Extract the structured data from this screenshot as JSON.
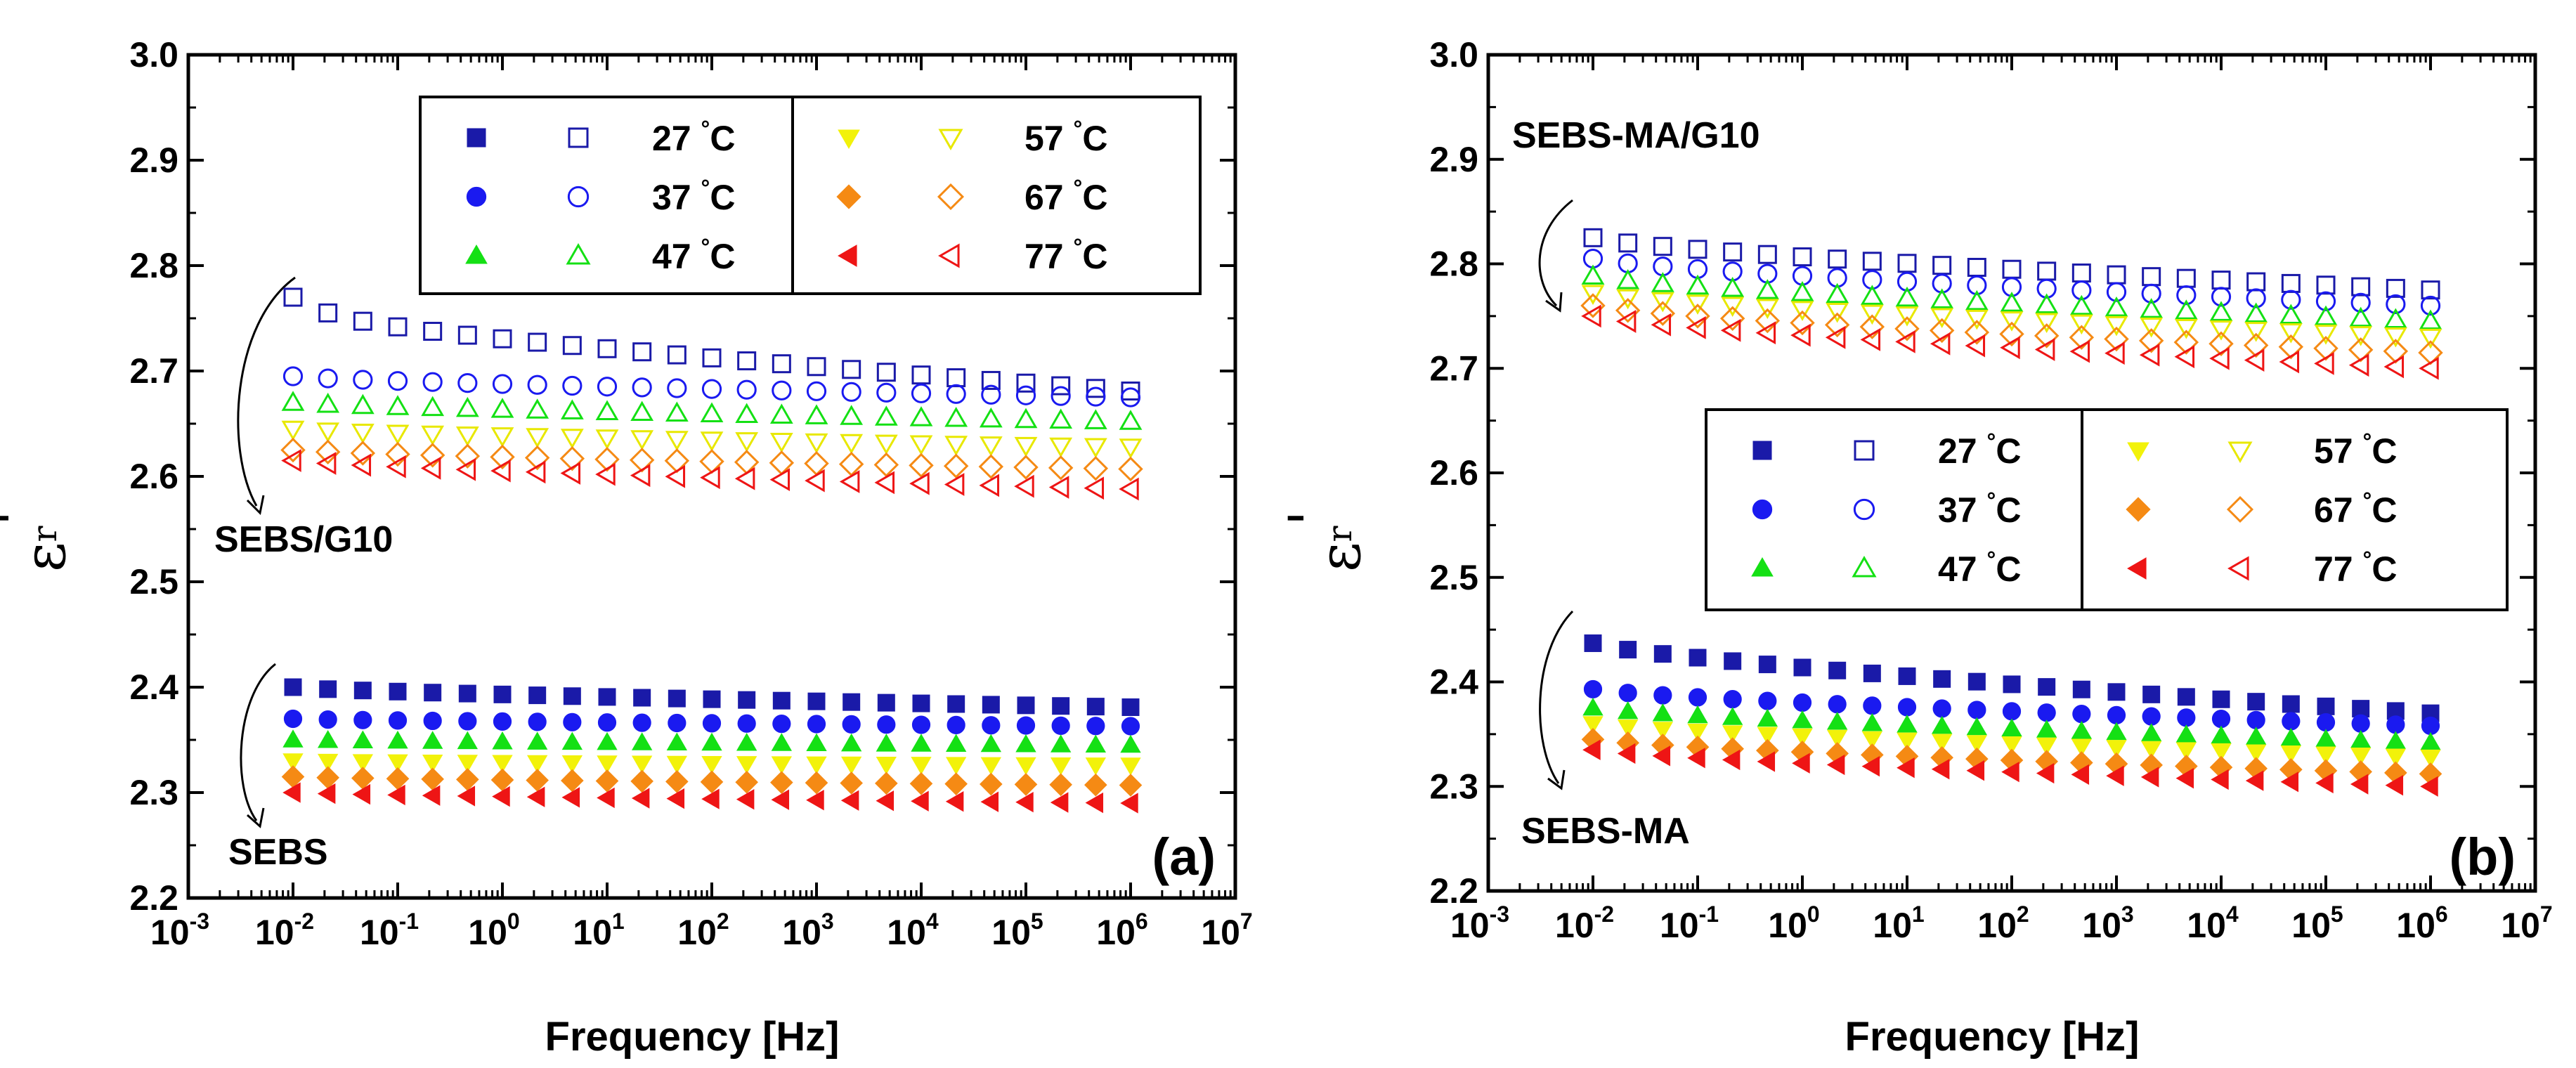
{
  "chart_data": [
    {
      "type": "scatter",
      "panel_label": "(a)",
      "xlabel": "Frequency [Hz]",
      "ylabel": "ε",
      "ylabel_sub": "r",
      "ylabel_prime": "'",
      "xscale": "log",
      "xlim_exp": [
        -3,
        7
      ],
      "xtick_exps": [
        "-3",
        "-2",
        "-1",
        "0",
        "1",
        "2",
        "3",
        "4",
        "5",
        "6",
        "7"
      ],
      "xtick_base": "10",
      "ylim": [
        2.2,
        3.0
      ],
      "yticks": [
        "2.2",
        "2.3",
        "2.4",
        "2.5",
        "2.6",
        "2.7",
        "2.8",
        "2.9",
        "3.0"
      ],
      "x_exp_range": [
        -2,
        6
      ],
      "points_per_series": 25,
      "annotations": [
        {
          "text": "SEBS/G10",
          "group": "composite"
        },
        {
          "text": "SEBS",
          "group": "neat"
        }
      ],
      "legend": [
        {
          "temp": "27",
          "unit": "°C",
          "color": "#1a1aa8"
        },
        {
          "temp": "37",
          "unit": "°C",
          "color": "#1a1af0"
        },
        {
          "temp": "47",
          "unit": "°C",
          "color": "#14e014"
        },
        {
          "temp": "57",
          "unit": "°C",
          "color": "#f2f20a"
        },
        {
          "temp": "67",
          "unit": "°C",
          "color": "#f58a14"
        },
        {
          "temp": "77",
          "unit": "°C",
          "color": "#ee1515"
        }
      ],
      "series": [
        {
          "name": "SEBS/G10 27 °C",
          "group": "composite",
          "marker": "square",
          "filled": false,
          "color": "#1a1aa8",
          "start": 2.77,
          "end": 2.695,
          "decay": 0.3,
          "initial_drop": 0.035
        },
        {
          "name": "SEBS/G10 37 °C",
          "group": "composite",
          "marker": "circle",
          "filled": false,
          "color": "#1a1af0",
          "start": 2.695,
          "end": 2.675,
          "decay": 0.1,
          "initial_drop": 0.0
        },
        {
          "name": "SEBS/G10 47 °C",
          "group": "composite",
          "marker": "triangle-up",
          "filled": false,
          "color": "#14e014",
          "start": 2.67,
          "end": 2.652,
          "decay": 0.1,
          "initial_drop": 0.0
        },
        {
          "name": "SEBS/G10 57 °C",
          "group": "composite",
          "marker": "triangle-down",
          "filled": false,
          "color": "#e8e800",
          "start": 2.645,
          "end": 2.628,
          "decay": 0.1,
          "initial_drop": 0.0
        },
        {
          "name": "SEBS/G10 67 °C",
          "group": "composite",
          "marker": "diamond",
          "filled": false,
          "color": "#f58a14",
          "start": 2.625,
          "end": 2.607,
          "decay": 0.1,
          "initial_drop": 0.0
        },
        {
          "name": "SEBS/G10 77 °C",
          "group": "composite",
          "marker": "triangle-left",
          "filled": false,
          "color": "#ee1515",
          "start": 2.615,
          "end": 2.588,
          "decay": 0.15,
          "initial_drop": 0.0
        },
        {
          "name": "SEBS 27 °C",
          "group": "neat",
          "marker": "square",
          "filled": true,
          "color": "#1a1aa8",
          "start": 2.4,
          "end": 2.381,
          "decay": 0.12,
          "initial_drop": 0.0
        },
        {
          "name": "SEBS 37 °C",
          "group": "neat",
          "marker": "circle",
          "filled": true,
          "color": "#1a1af0",
          "start": 2.37,
          "end": 2.363,
          "decay": 0.05,
          "initial_drop": 0.0
        },
        {
          "name": "SEBS 47 °C",
          "group": "neat",
          "marker": "triangle-up",
          "filled": true,
          "color": "#14e014",
          "start": 2.35,
          "end": 2.345,
          "decay": 0.05,
          "initial_drop": 0.0
        },
        {
          "name": "SEBS 57 °C",
          "group": "neat",
          "marker": "triangle-down",
          "filled": true,
          "color": "#f2f20a",
          "start": 2.33,
          "end": 2.326,
          "decay": 0.05,
          "initial_drop": 0.0
        },
        {
          "name": "SEBS 67 °C",
          "group": "neat",
          "marker": "diamond",
          "filled": true,
          "color": "#f58a14",
          "start": 2.315,
          "end": 2.307,
          "decay": 0.05,
          "initial_drop": 0.0
        },
        {
          "name": "SEBS 77 °C",
          "group": "neat",
          "marker": "triangle-left",
          "filled": true,
          "color": "#ee1515",
          "start": 2.3,
          "end": 2.29,
          "decay": 0.05,
          "initial_drop": 0.0
        }
      ]
    },
    {
      "type": "scatter",
      "panel_label": "(b)",
      "xlabel": "Frequency [Hz]",
      "ylabel": "ε",
      "ylabel_sub": "r",
      "ylabel_prime": "'",
      "xscale": "log",
      "xlim_exp": [
        -3,
        7
      ],
      "xtick_exps": [
        "-3",
        "-2",
        "-1",
        "0",
        "1",
        "2",
        "3",
        "4",
        "5",
        "6",
        "7"
      ],
      "xtick_base": "10",
      "ylim": [
        2.2,
        3.0
      ],
      "yticks": [
        "2.2",
        "2.3",
        "2.4",
        "2.5",
        "2.6",
        "2.7",
        "2.8",
        "2.9",
        "3.0"
      ],
      "x_exp_range": [
        -2,
        6
      ],
      "points_per_series": 25,
      "annotations": [
        {
          "text": "SEBS-MA/G10",
          "group": "composite"
        },
        {
          "text": "SEBS-MA",
          "group": "neat"
        }
      ],
      "legend": [
        {
          "temp": "27",
          "unit": "°C",
          "color": "#1a1aa8"
        },
        {
          "temp": "37",
          "unit": "°C",
          "color": "#1a1af0"
        },
        {
          "temp": "47",
          "unit": "°C",
          "color": "#14e014"
        },
        {
          "temp": "57",
          "unit": "°C",
          "color": "#f2f20a"
        },
        {
          "temp": "67",
          "unit": "°C",
          "color": "#f58a14"
        },
        {
          "temp": "77",
          "unit": "°C",
          "color": "#ee1515"
        }
      ],
      "series": [
        {
          "name": "SEBS-MA/G10 27 °C",
          "group": "composite",
          "marker": "square",
          "filled": false,
          "color": "#1a1aa8",
          "start": 2.825,
          "end": 2.775,
          "decay": 0.1,
          "initial_drop": 0.0
        },
        {
          "name": "SEBS-MA/G10 37 °C",
          "group": "composite",
          "marker": "circle",
          "filled": false,
          "color": "#1a1af0",
          "start": 2.805,
          "end": 2.76,
          "decay": 0.1,
          "initial_drop": 0.0
        },
        {
          "name": "SEBS-MA/G10 47 °C",
          "group": "composite",
          "marker": "triangle-up",
          "filled": false,
          "color": "#14e014",
          "start": 2.788,
          "end": 2.745,
          "decay": 0.1,
          "initial_drop": 0.0
        },
        {
          "name": "SEBS-MA/G10 57 °C",
          "group": "composite",
          "marker": "triangle-down",
          "filled": false,
          "color": "#e8e800",
          "start": 2.772,
          "end": 2.73,
          "decay": 0.1,
          "initial_drop": 0.0
        },
        {
          "name": "SEBS-MA/G10 67 °C",
          "group": "composite",
          "marker": "diamond",
          "filled": false,
          "color": "#f58a14",
          "start": 2.76,
          "end": 2.715,
          "decay": 0.1,
          "initial_drop": 0.0
        },
        {
          "name": "SEBS-MA/G10 77 °C",
          "group": "composite",
          "marker": "triangle-left",
          "filled": false,
          "color": "#ee1515",
          "start": 2.75,
          "end": 2.7,
          "decay": 0.1,
          "initial_drop": 0.0
        },
        {
          "name": "SEBS-MA 27 °C",
          "group": "neat",
          "marker": "square",
          "filled": true,
          "color": "#1a1aa8",
          "start": 2.437,
          "end": 2.37,
          "decay": 0.25,
          "initial_drop": 0.0
        },
        {
          "name": "SEBS-MA 37 °C",
          "group": "neat",
          "marker": "circle",
          "filled": true,
          "color": "#1a1af0",
          "start": 2.393,
          "end": 2.358,
          "decay": 0.1,
          "initial_drop": 0.0
        },
        {
          "name": "SEBS-MA 47 °C",
          "group": "neat",
          "marker": "triangle-up",
          "filled": true,
          "color": "#14e014",
          "start": 2.375,
          "end": 2.342,
          "decay": 0.1,
          "initial_drop": 0.0
        },
        {
          "name": "SEBS-MA 57 °C",
          "group": "neat",
          "marker": "triangle-down",
          "filled": true,
          "color": "#f2f20a",
          "start": 2.36,
          "end": 2.328,
          "decay": 0.1,
          "initial_drop": 0.0
        },
        {
          "name": "SEBS-MA 67 °C",
          "group": "neat",
          "marker": "diamond",
          "filled": true,
          "color": "#f58a14",
          "start": 2.345,
          "end": 2.312,
          "decay": 0.1,
          "initial_drop": 0.0
        },
        {
          "name": "SEBS-MA 77 °C",
          "group": "neat",
          "marker": "triangle-left",
          "filled": true,
          "color": "#ee1515",
          "start": 2.335,
          "end": 2.3,
          "decay": 0.1,
          "initial_drop": 0.0
        }
      ]
    }
  ]
}
